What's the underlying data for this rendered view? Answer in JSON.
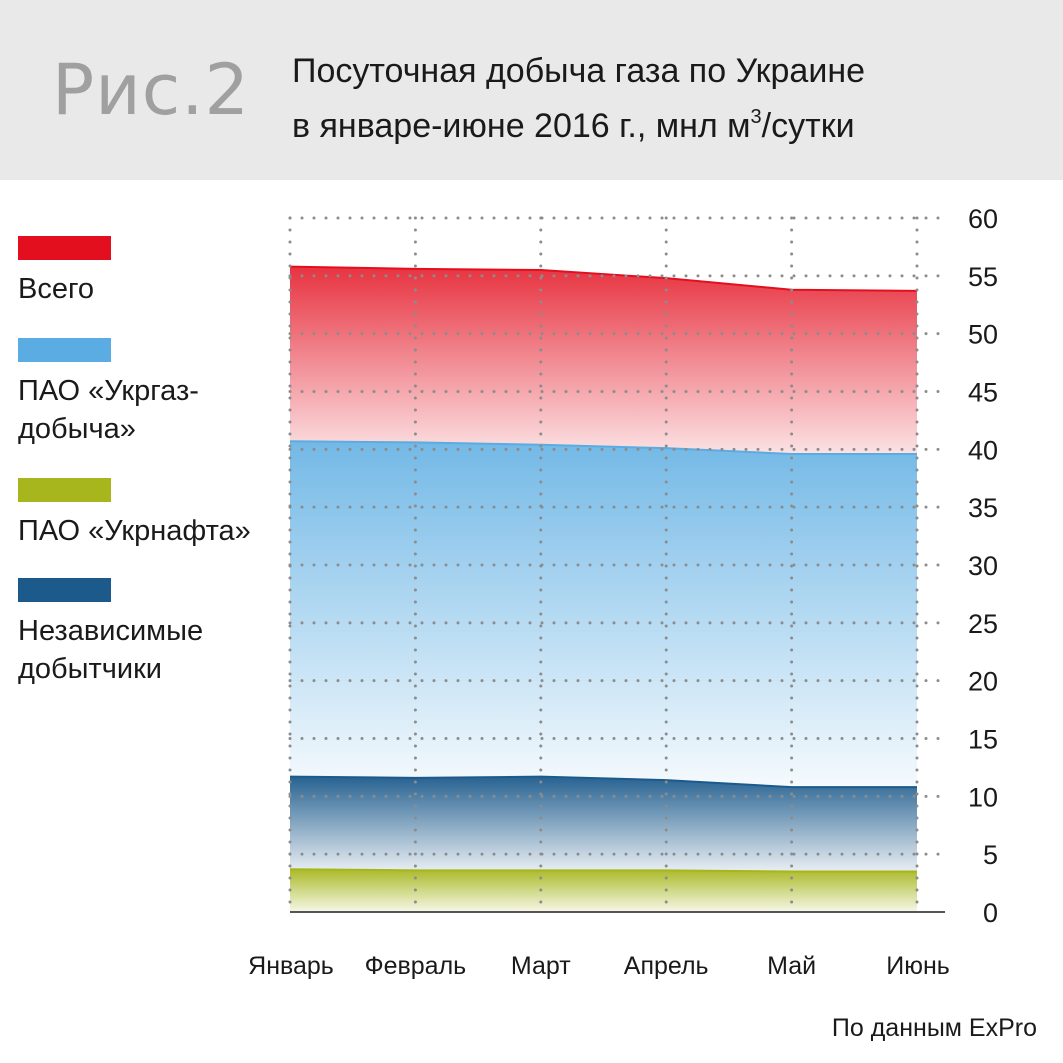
{
  "figure": {
    "label": "Рис.2",
    "title_line1": "Посуточная добыча газа по Украине",
    "title_line2_before": "в январе-июне 2016 г., мнл м",
    "title_sup": "3",
    "title_line2_after": "/сутки"
  },
  "legend": [
    {
      "lines": [
        "Всего"
      ],
      "color": "#e30f1f"
    },
    {
      "lines": [
        "ПАО «Укргаз-",
        "добыча»"
      ],
      "color": "#5aace2"
    },
    {
      "lines": [
        "ПАО «Укрнафта»"
      ],
      "color": "#a6b61c"
    },
    {
      "lines": [
        "Независимые",
        "добытчики"
      ],
      "color": "#1c5a8c"
    }
  ],
  "source": "По данным ExPro",
  "chart_data": {
    "type": "area",
    "categories": [
      "Январь",
      "Февраль",
      "Март",
      "Апрель",
      "Май",
      "Июнь"
    ],
    "ylim": [
      0,
      60
    ],
    "yticks": [
      "0",
      "5",
      "10",
      "15",
      "20",
      "25",
      "30",
      "35",
      "40",
      "45",
      "50",
      "55",
      "60"
    ],
    "grid": true,
    "y_axis_position": "right",
    "series": [
      {
        "name": "Всего",
        "color": "#e30f1f",
        "values": [
          55.8,
          55.6,
          55.5,
          54.8,
          53.8,
          53.7
        ]
      },
      {
        "name": "ПАО «Укргаз-добыча»",
        "color": "#5aace2",
        "values": [
          40.7,
          40.6,
          40.4,
          40.1,
          39.6,
          39.6
        ]
      },
      {
        "name": "Независимые добытчики",
        "color": "#1c5a8c",
        "values": [
          11.7,
          11.6,
          11.7,
          11.4,
          10.8,
          10.8
        ]
      },
      {
        "name": "ПАО «Укрнафта»",
        "color": "#a6b61c",
        "values": [
          3.7,
          3.6,
          3.6,
          3.6,
          3.5,
          3.5
        ]
      }
    ]
  }
}
